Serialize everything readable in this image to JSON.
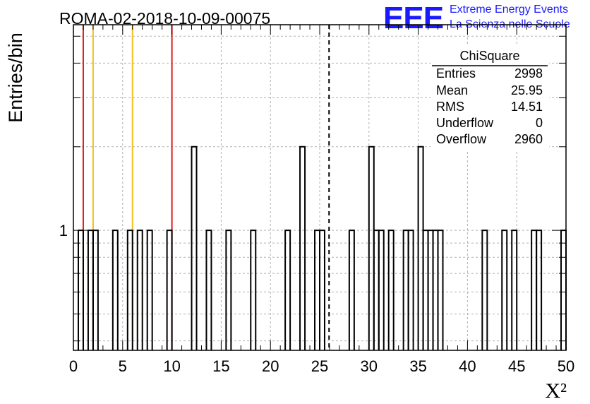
{
  "title": "ROMA-02-2018-10-09-00075",
  "logo": {
    "mark": "EEE",
    "line1": "Extreme Energy Events",
    "line2": "La Scienza nelle Scuole"
  },
  "stats_box": {
    "name": "ChiSquare",
    "rows": [
      {
        "label": "Entries",
        "value": "2998"
      },
      {
        "label": "Mean",
        "value": "25.95"
      },
      {
        "label": "RMS",
        "value": "14.51"
      },
      {
        "label": "Underflow",
        "value": "0"
      },
      {
        "label": "Overflow",
        "value": "2960"
      }
    ]
  },
  "colors": {
    "red_marker": "#e01b1b",
    "yellow_marker": "#f2c21a",
    "logo_blue": "#1a1aff",
    "grid": "#b0b0b0"
  },
  "chart_data": {
    "type": "bar",
    "title": "ROMA-02-2018-10-09-00075",
    "xlabel": "X²",
    "ylabel": "Entries/bin",
    "xlim": [
      0,
      50
    ],
    "ylim": [
      0.37,
      5.5
    ],
    "yscale": "log",
    "grid": true,
    "x_ticks": [
      0,
      5,
      10,
      15,
      20,
      25,
      30,
      35,
      40,
      45,
      50
    ],
    "y_ticks": [
      1
    ],
    "bin_width": 0.5,
    "bin_edges_lo": [
      0.5,
      1.5,
      2.0,
      4.0,
      5.5,
      6.5,
      7.5,
      9.5,
      12.0,
      13.5,
      15.5,
      18.0,
      21.5,
      23.0,
      24.5,
      25.0,
      28.0,
      30.0,
      30.5,
      31.0,
      32.0,
      33.5,
      34.0,
      35.0,
      35.5,
      36.0,
      36.5,
      37.0,
      41.5,
      43.5,
      44.5,
      46.5,
      47.0,
      49.5
    ],
    "values": [
      1,
      1,
      1,
      1,
      1,
      1,
      1,
      1,
      2,
      1,
      1,
      1,
      1,
      2,
      1,
      1,
      1,
      2,
      1,
      1,
      1,
      1,
      1,
      2,
      1,
      1,
      1,
      1,
      1,
      1,
      1,
      1,
      1,
      1
    ],
    "vertical_lines": [
      {
        "x": 1.0,
        "style": "solid",
        "color": "red"
      },
      {
        "x": 2.0,
        "style": "solid",
        "color": "yellow"
      },
      {
        "x": 6.0,
        "style": "solid",
        "color": "yellow"
      },
      {
        "x": 10.0,
        "style": "solid",
        "color": "red"
      },
      {
        "x": 25.95,
        "style": "dashed",
        "color": "black"
      }
    ]
  }
}
